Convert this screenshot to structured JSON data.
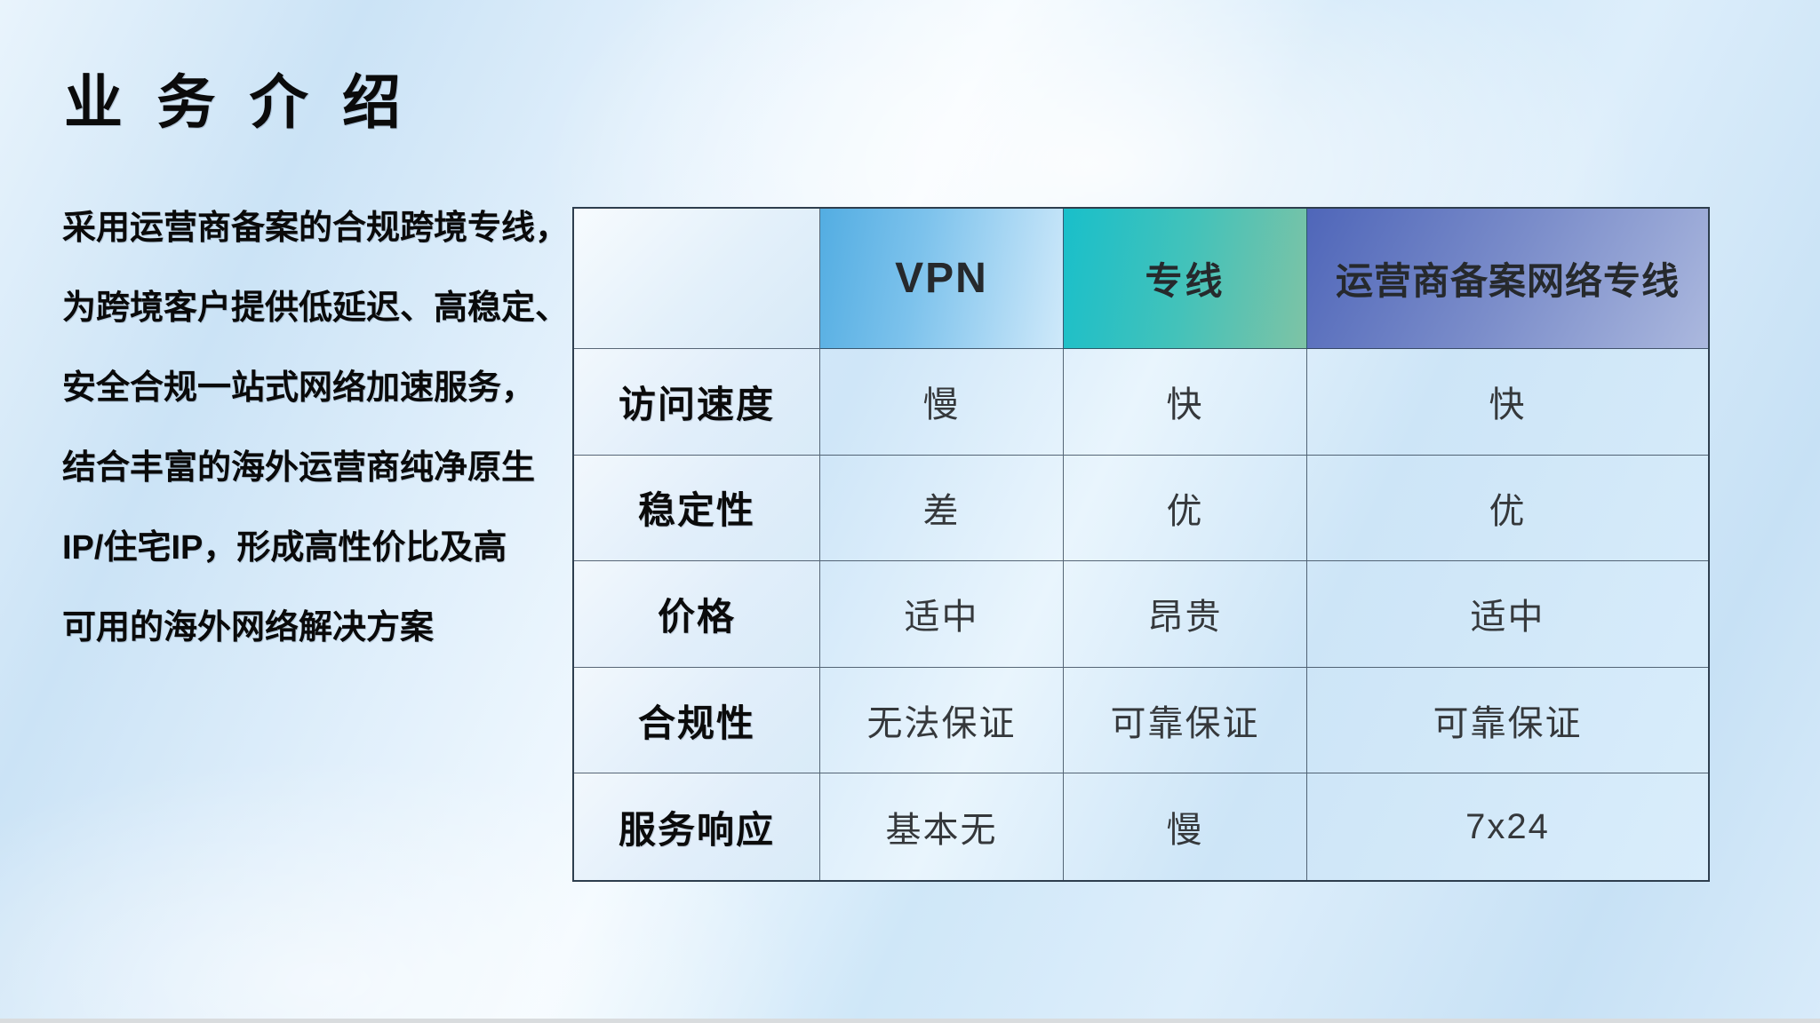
{
  "title": "业 务 介 绍",
  "description": {
    "lines": [
      "采用运营商备案的合规跨境专线，",
      "为跨境客户提供低延迟、高稳定、",
      "安全合规一站式网络加速服务，",
      "结合丰富的海外运营商纯净原生",
      "IP/住宅IP，形成高性价比及高",
      "可用的海外网络解决方案"
    ]
  },
  "table": {
    "columns": [
      "",
      "VPN",
      "专线",
      "运营商备案网络专线"
    ],
    "rows": [
      {
        "label": "访问速度",
        "values": [
          "慢",
          "快",
          "快"
        ]
      },
      {
        "label": "稳定性",
        "values": [
          "差",
          "优",
          "优"
        ]
      },
      {
        "label": "价格",
        "values": [
          "适中",
          "昂贵",
          "适中"
        ]
      },
      {
        "label": "合规性",
        "values": [
          "无法保证",
          "可靠保证",
          "可靠保证"
        ]
      },
      {
        "label": "服务响应",
        "values": [
          "基本无",
          "慢",
          "7x24"
        ]
      }
    ]
  },
  "colors": {
    "slide_background": "#d3e8f8",
    "vpn_header_start": "#53ade2",
    "vpn_header_end": "#cfe9fa",
    "dedicated_line_header_start": "#19bfca",
    "dedicated_line_header_end": "#7ec3a5",
    "carrier_line_header_start": "#4f66b9",
    "carrier_line_header_end": "#abb8de",
    "table_border": "#2e3e4e",
    "title_text": "#0b0b0b",
    "value_text": "#35383b"
  }
}
